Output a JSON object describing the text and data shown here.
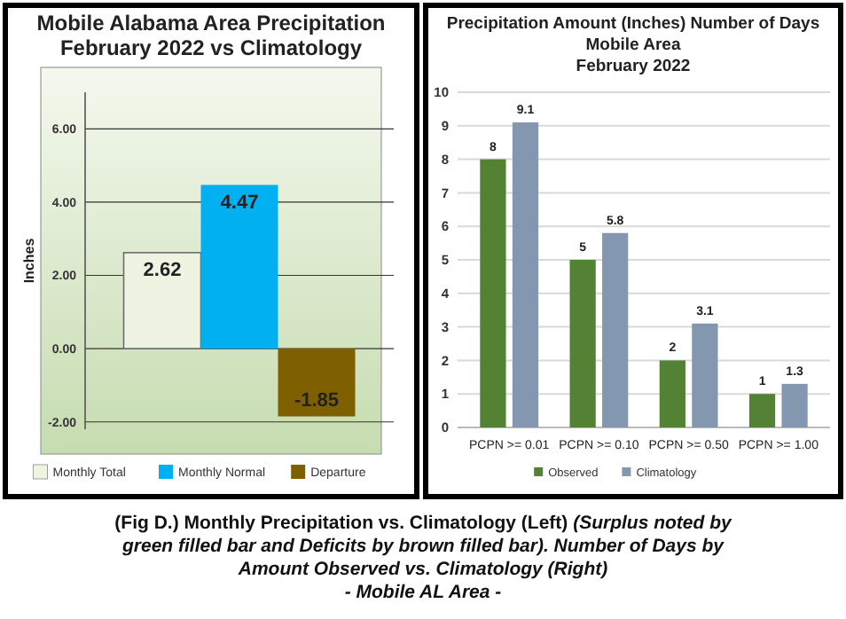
{
  "chart_data": [
    {
      "type": "bar",
      "title": "Mobile Alabama Area Precipitation\nFebruary 2022 vs Climatology",
      "ylabel": "Inches",
      "categories": [
        null
      ],
      "series": [
        {
          "name": "Monthly Total",
          "color": "#eef3e2",
          "values": [
            2.62
          ]
        },
        {
          "name": "Monthly Normal",
          "color": "#00b0f0",
          "values": [
            4.47
          ]
        },
        {
          "name": "Departure",
          "color": "#7f6000",
          "values": [
            -1.85
          ]
        }
      ],
      "ylim": [
        -2.2,
        7
      ],
      "yticks": [
        {
          "value": -2,
          "label": "-2.00"
        },
        {
          "value": 0,
          "label": "0.00"
        },
        {
          "value": 2,
          "label": "2.00"
        },
        {
          "value": 4,
          "label": "4.00"
        },
        {
          "value": 6,
          "label": "6.00"
        }
      ],
      "grid": "y",
      "legend": "bottom",
      "data_labels": true,
      "annotations": [
        "(Fig D.) Monthly Precipitation vs. Climatology (Left)",
        "(Surplus noted by green filled bar and Deficits by brown filled bar). Number of Days by Amount Observed vs. Climatology (Right)",
        "- Mobile AL Area -"
      ]
    },
    {
      "type": "bar",
      "title": "Precipitation Amount (Inches) Number of Days\nMobile Area\nFebruary 2022",
      "categories": [
        "PCPN >= 0.01",
        "PCPN >= 0.10",
        "PCPN >= 0.50",
        "PCPN >= 1.00"
      ],
      "series": [
        {
          "name": "Observed",
          "color": "#548235",
          "values": [
            8,
            5,
            2,
            1
          ]
        },
        {
          "name": "Climatology",
          "color": "#8497b0",
          "values": [
            9.1,
            5.8,
            3.1,
            1.3
          ]
        }
      ],
      "ylim": [
        0,
        10
      ],
      "yticks": [
        0,
        1,
        2,
        3,
        4,
        5,
        6,
        7,
        8,
        9,
        10
      ],
      "grid": "y",
      "legend": "bottom",
      "data_labels": true
    }
  ]
}
